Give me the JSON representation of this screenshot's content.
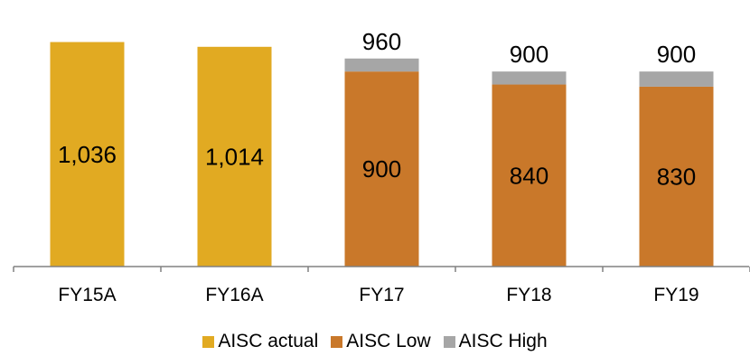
{
  "chart_data": {
    "type": "bar",
    "stacked": true,
    "categories": [
      "FY15A",
      "FY16A",
      "FY17",
      "FY18",
      "FY19"
    ],
    "series": [
      {
        "name": "AISC actual",
        "color": "#E1AA22",
        "values": [
          1036,
          1014,
          null,
          null,
          null
        ]
      },
      {
        "name": "AISC Low",
        "color": "#C9782A",
        "values": [
          null,
          null,
          900,
          840,
          830
        ]
      },
      {
        "name": "AISC High",
        "color": "#A6A6A6",
        "values": [
          null,
          null,
          60,
          60,
          70
        ]
      }
    ],
    "data_labels": {
      "inside": [
        "1,036",
        "1,014",
        "900",
        "840",
        "830"
      ],
      "top": [
        "",
        "",
        "960",
        "900",
        "900"
      ]
    },
    "ylim": [
      0,
      1230
    ],
    "grid": false,
    "legend": "bottom"
  }
}
